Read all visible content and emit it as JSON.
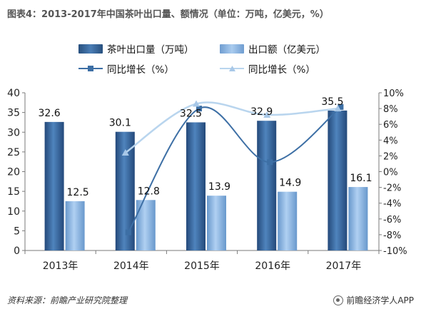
{
  "title": "图表4：2013-2017年中国茶叶出口量、额情况（单位：万吨，亿美元，%）",
  "footer": {
    "source": "资料来源：前瞻产业研究院整理",
    "brand": "前瞻经济学人APP"
  },
  "colors": {
    "volume_bar": "#3b6aa0",
    "value_bar": "#8ab4e0",
    "volume_growth_line": "#3d6fa5",
    "value_growth_line": "#b9d5ee"
  },
  "chart_data": {
    "type": "bar",
    "categories": [
      "2013年",
      "2014年",
      "2015年",
      "2016年",
      "2017年"
    ],
    "series": [
      {
        "name": "茶叶出口量（万吨）",
        "kind": "bar",
        "axis": "left",
        "values": [
          32.6,
          30.1,
          32.5,
          32.9,
          35.5
        ]
      },
      {
        "name": "出口额（亿美元）",
        "kind": "bar",
        "axis": "left",
        "values": [
          12.5,
          12.8,
          13.9,
          14.9,
          16.1
        ]
      },
      {
        "name": "同比增长（%）",
        "kind": "line",
        "axis": "right",
        "marker": "square",
        "x": [
          "2014年",
          "2015年",
          "2016年",
          "2017年"
        ],
        "values": [
          -7.7,
          8.0,
          1.2,
          8.2
        ]
      },
      {
        "name": "同比增长（%）",
        "kind": "line",
        "axis": "right",
        "marker": "triangle",
        "x": [
          "2014年",
          "2015年",
          "2016年",
          "2017年"
        ],
        "values": [
          2.4,
          8.6,
          7.2,
          8.0
        ]
      }
    ],
    "y_left": {
      "min": 0,
      "max": 40,
      "ticks": [
        0,
        5,
        10,
        15,
        20,
        25,
        30,
        35,
        40
      ]
    },
    "y_right": {
      "min": -10,
      "max": 10,
      "ticks": [
        "-10%",
        "-8%",
        "-6%",
        "-4%",
        "-2%",
        "0%",
        "2%",
        "4%",
        "6%",
        "8%",
        "10%"
      ]
    },
    "data_labels": [
      [
        "32.6",
        "30.1",
        "32.5",
        "32.9",
        "35.5"
      ],
      [
        "12.5",
        "12.8",
        "13.9",
        "14.9",
        "16.1"
      ]
    ],
    "grid": false,
    "legend": "top"
  }
}
